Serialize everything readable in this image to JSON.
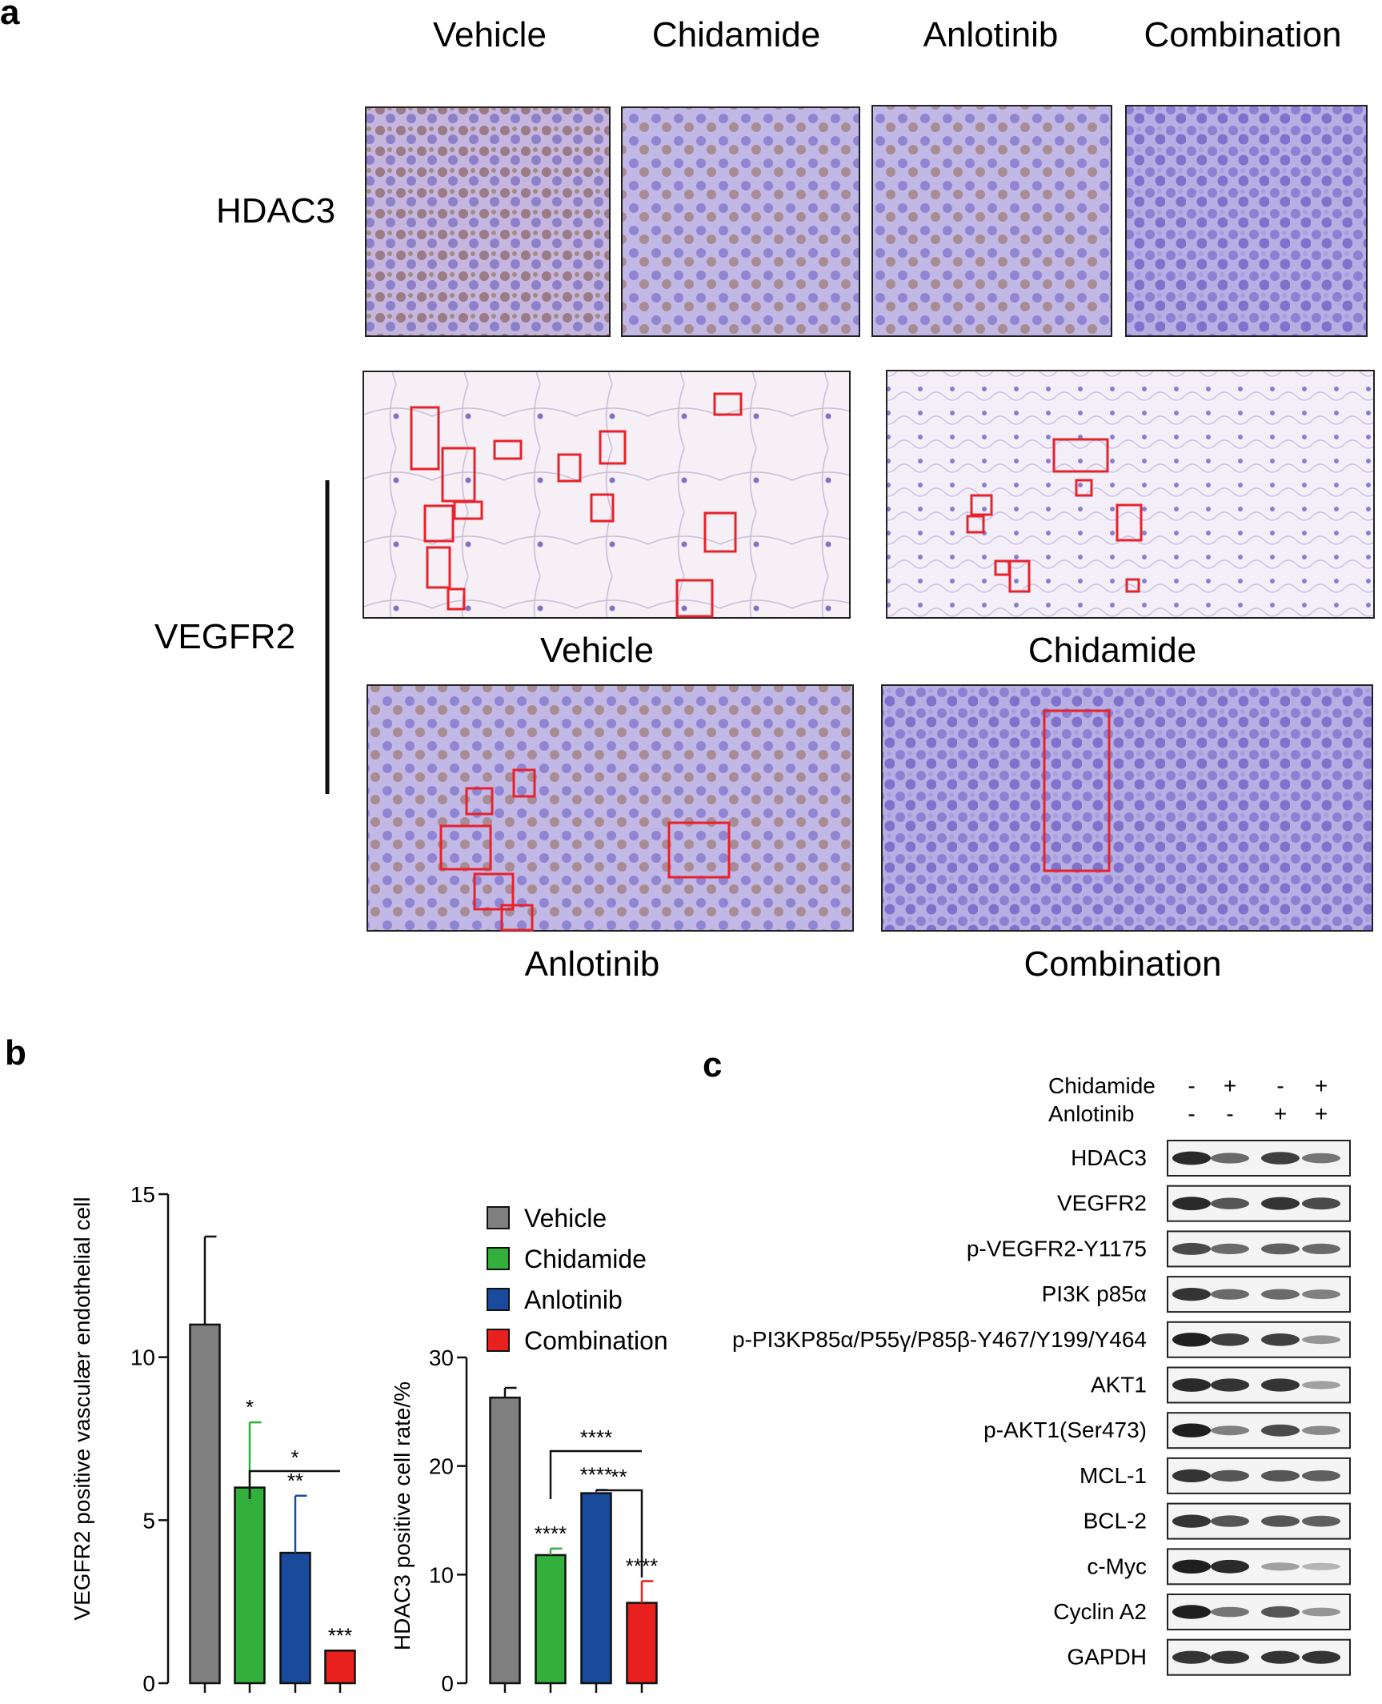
{
  "panel_labels": {
    "a": "a",
    "b": "b",
    "c": "c"
  },
  "panel_a": {
    "column_headers": [
      "Vehicle",
      "Chidamide",
      "Anlotinib",
      "Combination"
    ],
    "row_label_hdac3": "HDAC3",
    "row_label_vegfr2": "VEGFR2",
    "vegfr2_captions": [
      "Vehicle",
      "Chidamide",
      "Anlotinib",
      "Combination"
    ],
    "colors": {
      "stain_purple": "#9a8fd6",
      "background_pink": "#f4edf6",
      "box_red": "#e8212a"
    }
  },
  "legend": {
    "entries": [
      {
        "label": "Vehicle",
        "color": "#808080"
      },
      {
        "label": "Chidamide",
        "color": "#33b03b"
      },
      {
        "label": "Anlotinib",
        "color": "#1a4a9c"
      },
      {
        "label": "Combination",
        "color": "#e8211e"
      }
    ]
  },
  "chart_data": [
    {
      "type": "bar",
      "ylabel": "VEGFR2 positive vasculær endothelial cell",
      "ylim": [
        0,
        15
      ],
      "yticks": [
        0,
        5,
        10,
        15
      ],
      "categories": [
        "Vehicle",
        "Chidamide",
        "Anlotinib",
        "Combination"
      ],
      "values": [
        11.0,
        6.0,
        4.0,
        1.0
      ],
      "errors": [
        2.7,
        2.0,
        1.75,
        0
      ],
      "significance": [
        "",
        "*",
        "**",
        "***"
      ],
      "brackets": [
        {
          "from": "Chidamide",
          "to": "Combination",
          "label": "*"
        }
      ]
    },
    {
      "type": "bar",
      "ylabel": "HDAC3 positive cell rate/%",
      "ylim": [
        0,
        30
      ],
      "yticks": [
        0,
        10,
        20,
        30
      ],
      "categories": [
        "Vehicle",
        "Chidamide",
        "Anlotinib",
        "Combination"
      ],
      "values": [
        26.3,
        11.8,
        17.5,
        7.4
      ],
      "errors": [
        0.9,
        0.6,
        0.3,
        2.0
      ],
      "significance": [
        "",
        "****",
        "****",
        "****"
      ],
      "brackets": [
        {
          "from": "Chidamide",
          "to": "Combination",
          "label": "****"
        },
        {
          "from": "Anlotinib",
          "to": "Combination",
          "label": "**"
        }
      ]
    }
  ],
  "panel_c": {
    "treatment_rows": [
      {
        "name": "Chidamide",
        "signs": [
          "-",
          "+",
          "-",
          "+"
        ]
      },
      {
        "name": "Anlotinib",
        "signs": [
          "-",
          "-",
          "+",
          "+"
        ]
      }
    ],
    "blots": [
      {
        "label": "HDAC3",
        "intensity": [
          0.9,
          0.6,
          0.8,
          0.55
        ]
      },
      {
        "label": "VEGFR2",
        "intensity": [
          0.9,
          0.7,
          0.85,
          0.75
        ]
      },
      {
        "label": "p-VEGFR2-Y1175",
        "intensity": [
          0.75,
          0.6,
          0.65,
          0.6
        ]
      },
      {
        "label": "PI3K p85α",
        "intensity": [
          0.85,
          0.6,
          0.6,
          0.5
        ]
      },
      {
        "label": "p-PI3KP85α/P55γ/P85β-Y467/Y199/Y464",
        "intensity": [
          0.95,
          0.8,
          0.8,
          0.4
        ]
      },
      {
        "label": "AKT1",
        "intensity": [
          0.9,
          0.85,
          0.85,
          0.35
        ]
      },
      {
        "label": "p-AKT1(Ser473)",
        "intensity": [
          0.95,
          0.5,
          0.75,
          0.45
        ]
      },
      {
        "label": "MCL-1",
        "intensity": [
          0.85,
          0.7,
          0.7,
          0.65
        ]
      },
      {
        "label": "BCL-2",
        "intensity": [
          0.85,
          0.7,
          0.7,
          0.65
        ]
      },
      {
        "label": "c-Myc",
        "intensity": [
          0.95,
          0.9,
          0.35,
          0.25
        ]
      },
      {
        "label": "Cyclin A2",
        "intensity": [
          0.95,
          0.55,
          0.7,
          0.4
        ]
      },
      {
        "label": "GAPDH",
        "intensity": [
          0.85,
          0.85,
          0.85,
          0.85
        ]
      }
    ]
  }
}
